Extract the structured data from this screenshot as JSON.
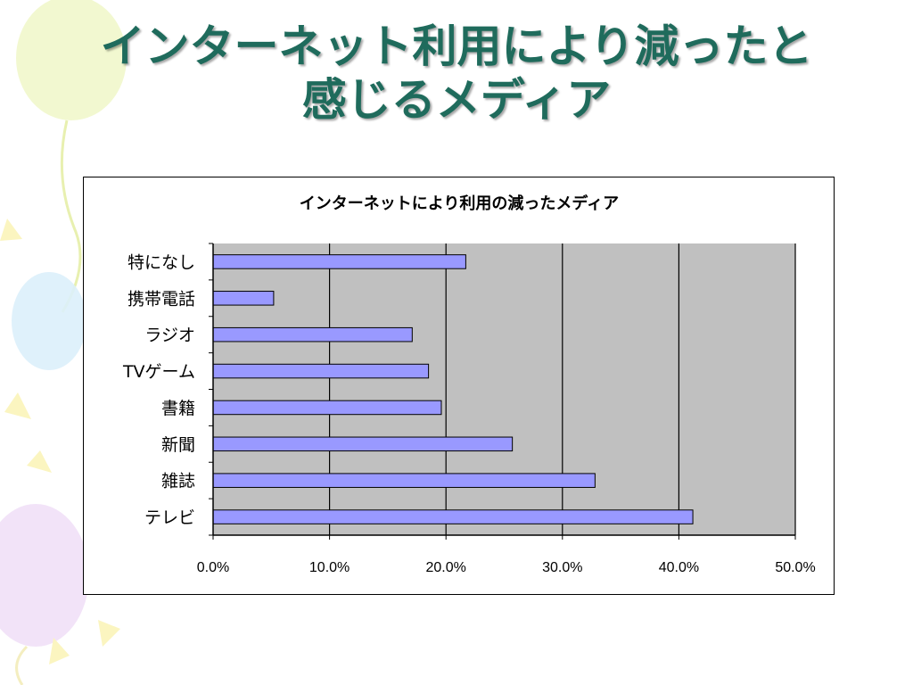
{
  "slide": {
    "title_line1": "インターネット利用により減ったと",
    "title_line2": "感じるメディア"
  },
  "colors": {
    "title": "#1f6b5c",
    "bar_fill": "#9999ff",
    "plot_bg": "#c0c0c0",
    "bar_stroke": "#000000"
  },
  "chart_data": {
    "type": "bar",
    "orientation": "horizontal",
    "title": "インターネットにより利用の減ったメディア",
    "categories": [
      "特になし",
      "携帯電話",
      "ラジオ",
      "TVゲーム",
      "書籍",
      "新聞",
      "雑誌",
      "テレビ"
    ],
    "values": [
      21.7,
      5.2,
      17.1,
      18.5,
      19.6,
      25.7,
      32.8,
      41.2
    ],
    "value_unit": "%",
    "xlim": [
      0,
      50
    ],
    "x_ticks": [
      "0.0%",
      "10.0%",
      "20.0%",
      "30.0%",
      "40.0%",
      "50.0%"
    ],
    "grid": true,
    "legend": "none"
  }
}
